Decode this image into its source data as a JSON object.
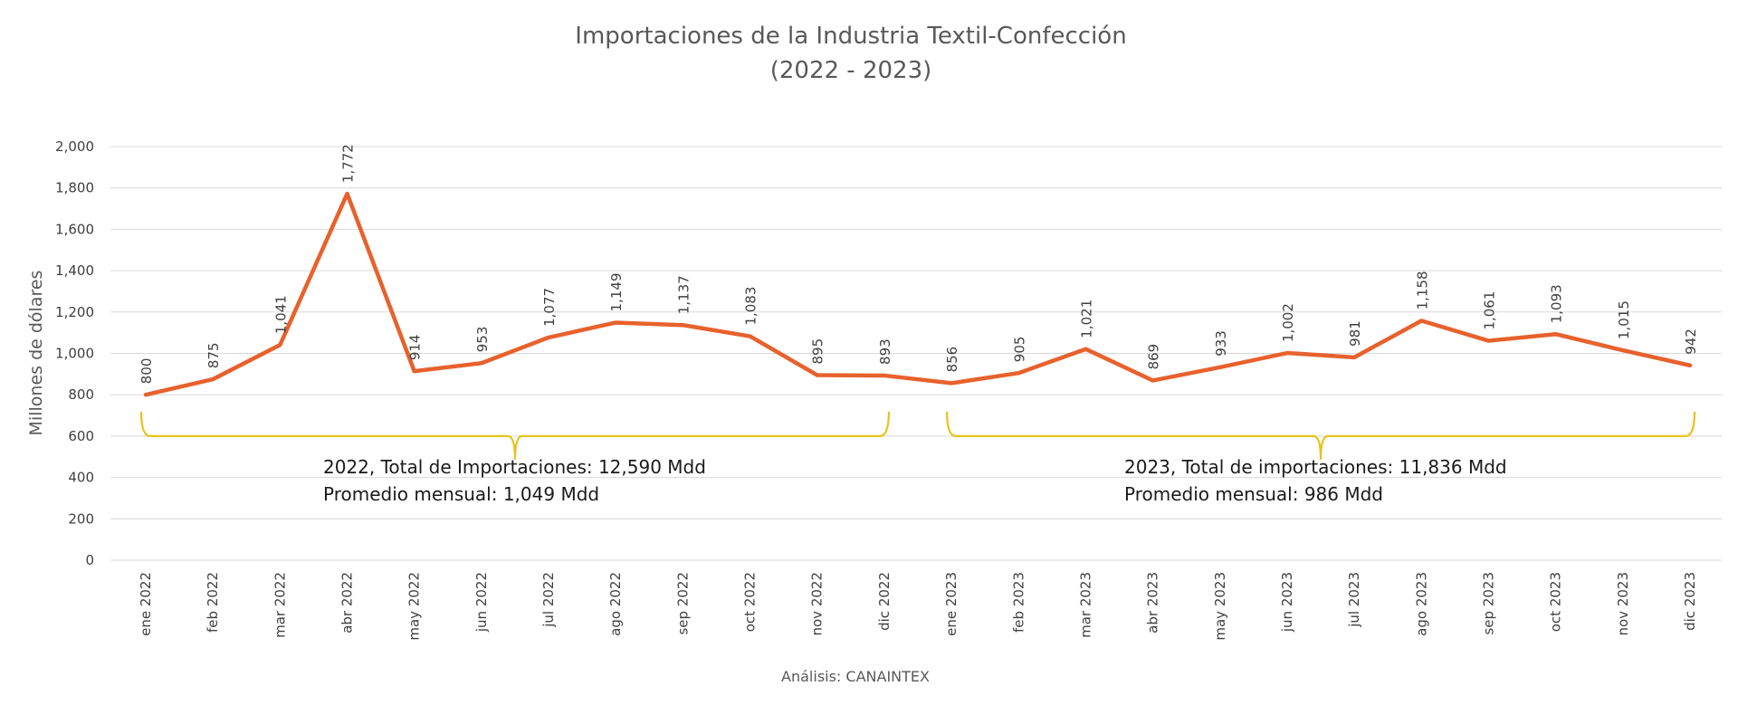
{
  "chart_data": {
    "type": "line",
    "title": "Importaciones de la Industria Textil-Confección",
    "subtitle": "(2022 - 2023)",
    "ylabel": "Millones de dólares",
    "xlabel": "",
    "ylim": [
      0,
      2000
    ],
    "yticks": [
      0,
      200,
      400,
      600,
      800,
      1000,
      1200,
      1400,
      1600,
      1800,
      2000
    ],
    "ytick_labels": [
      "0",
      "200",
      "400",
      "600",
      "800",
      "1,000",
      "1,200",
      "1,400",
      "1,600",
      "1,800",
      "2,000"
    ],
    "grid": true,
    "categories": [
      "ene 2022",
      "feb 2022",
      "mar 2022",
      "abr 2022",
      "may 2022",
      "jun 2022",
      "jul 2022",
      "ago 2022",
      "sep 2022",
      "oct 2022",
      "nov 2022",
      "dic 2022",
      "ene 2023",
      "feb 2023",
      "mar 2023",
      "abr 2023",
      "may 2023",
      "jun 2023",
      "jul 2023",
      "ago 2023",
      "sep 2023",
      "oct 2023",
      "nov 2023",
      "dic 2023"
    ],
    "series": [
      {
        "values": [
          800,
          875,
          1041,
          1772,
          914,
          953,
          1077,
          1149,
          1137,
          1083,
          895,
          893,
          856,
          905,
          1021,
          869,
          933,
          1002,
          981,
          1158,
          1061,
          1093,
          1015,
          942
        ],
        "labels": [
          "800",
          "875",
          "1,041",
          "1,772",
          "914",
          "953",
          "1,077",
          "1,149",
          "1,137",
          "1,083",
          "895",
          "893",
          "856",
          "905",
          "1,021",
          "869",
          "933",
          "1,002",
          "981",
          "1,158",
          "1,061",
          "1,093",
          "1,015",
          "942"
        ],
        "color": "#E8612C"
      }
    ],
    "annotations": [
      {
        "line1": "2022, Total de Importaciones: 12,590 Mdd",
        "line2": "Promedio mensual: 1,049 Mdd",
        "from": 0,
        "to": 11
      },
      {
        "line1": "2023, Total de importaciones: 11,836 Mdd",
        "line2": "Promedio mensual: 986 Mdd",
        "from": 12,
        "to": 23
      }
    ],
    "brace_color": "#E8C21A",
    "source": "Análisis: CANAINTEX"
  }
}
